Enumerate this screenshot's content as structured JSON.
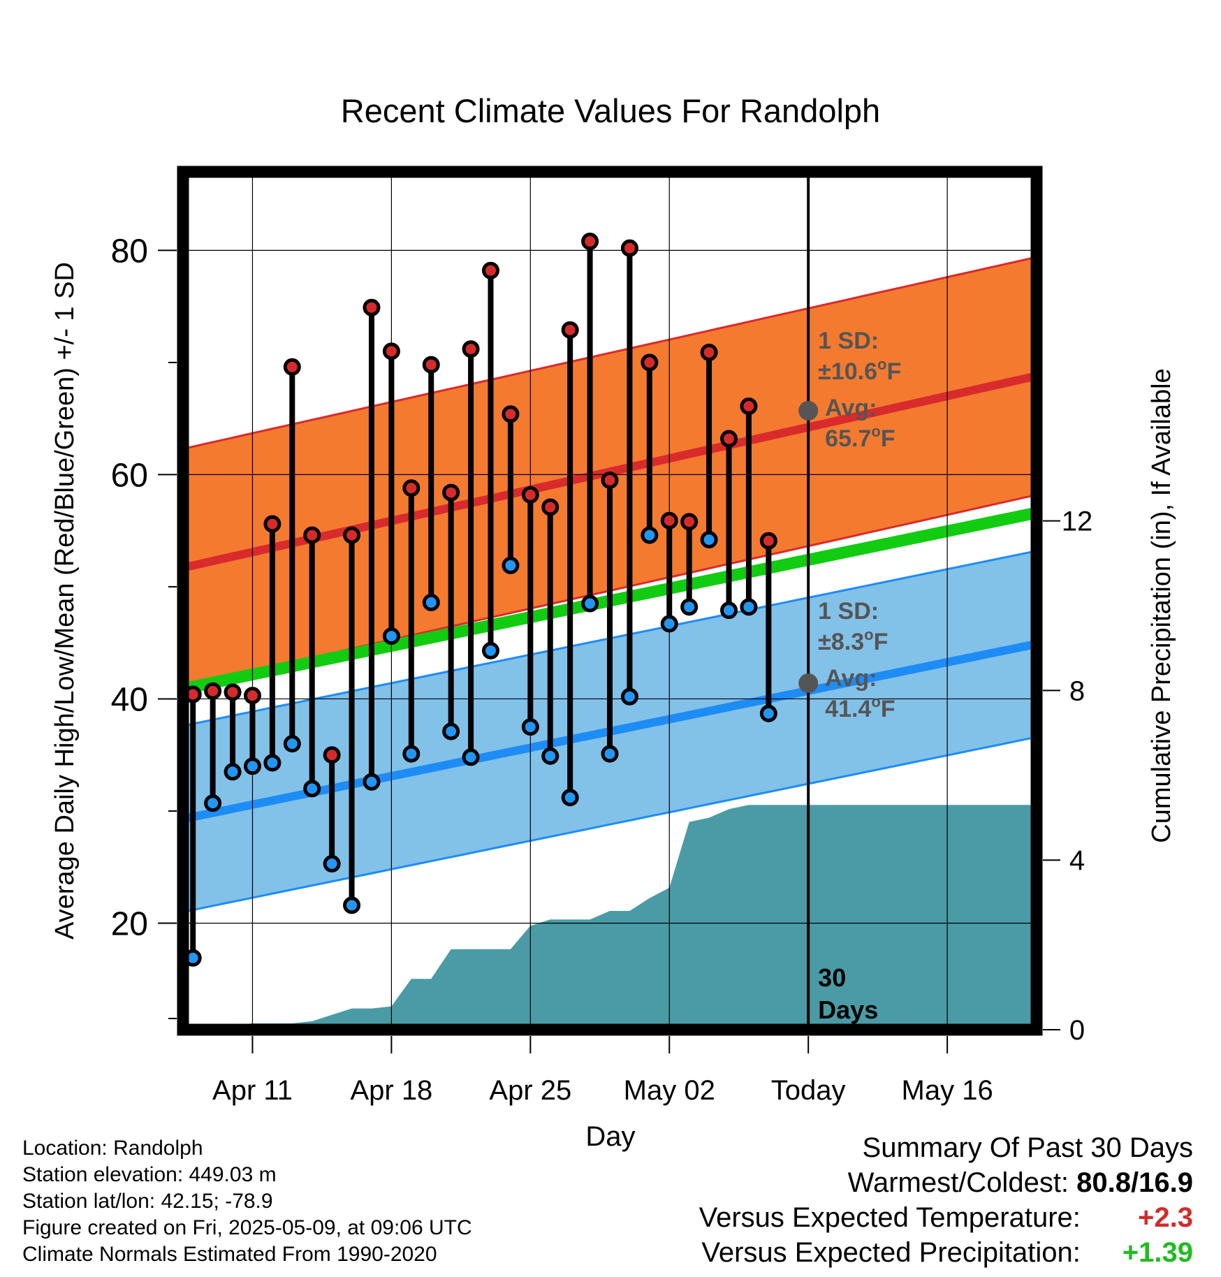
{
  "chart_data": {
    "type": "line",
    "title": "Recent Climate Values For Randolph",
    "xlabel": "Day",
    "ylabel": "Average Daily High/Low/Mean (Red/Blue/Green) +/- 1 SD",
    "y2label": "Cumulative Precipitation (in), If Available",
    "x_start": "Apr 08",
    "x_end": "May 21",
    "xlim": [
      -0.5,
      42.5
    ],
    "ylim": [
      10.5,
      87
    ],
    "y2lim": [
      0,
      20.23
    ],
    "x_ticks": [
      {
        "day": 3,
        "label": "Apr 11"
      },
      {
        "day": 10,
        "label": "Apr 18"
      },
      {
        "day": 17,
        "label": "Apr 25"
      },
      {
        "day": 24,
        "label": "May 02"
      },
      {
        "day": 31,
        "label": "Today"
      },
      {
        "day": 38,
        "label": "May 16"
      }
    ],
    "y_ticks": [
      20,
      40,
      60,
      80
    ],
    "y_minor_ticks": [
      30,
      50,
      70
    ],
    "y2_ticks": [
      0,
      4,
      8,
      12
    ],
    "today_day": 31,
    "today_label_top": "30",
    "today_label_bottom": "Days",
    "grid": true,
    "colors": {
      "high_band": "#f47a30",
      "high_line": "#d92b2b",
      "high_band_edge": "#d92b2b",
      "low_band": "#82c1e8",
      "low_line": "#1e8cf5",
      "low_band_edge": "#1e8cf5",
      "mean_line": "#11cc11",
      "precip": "#4a9ba5",
      "high_marker": "#d62b2b",
      "low_marker": "#2196f3",
      "avg_marker": "#555555",
      "annotation": "#555555"
    },
    "normals": {
      "high_mean": {
        "start": 51.7,
        "end": 68.8
      },
      "high_sd": 10.6,
      "low_mean": {
        "start": 29.3,
        "end": 44.9
      },
      "low_sd": 8.3,
      "mean": {
        "start": 40.9,
        "end": 56.6
      }
    },
    "annotations": {
      "high": {
        "sd_label": "1 SD:",
        "sd_value": "±10.6",
        "avg_label": "Avg:",
        "avg_value": "65.7",
        "unit": "F",
        "avg": 65.7
      },
      "low": {
        "sd_label": "1 SD:",
        "sd_value": "±8.3",
        "avg_label": "Avg:",
        "avg_value": "41.4",
        "unit": "F",
        "avg": 41.4
      }
    },
    "observed": {
      "days": [
        0,
        1,
        2,
        3,
        4,
        5,
        6,
        7,
        8,
        9,
        10,
        11,
        12,
        13,
        14,
        15,
        16,
        17,
        18,
        19,
        20,
        21,
        22,
        23,
        24,
        25,
        26,
        27,
        28,
        29,
        30
      ],
      "highs": [
        40.4,
        40.7,
        40.6,
        40.3,
        55.6,
        69.6,
        54.6,
        35.0,
        54.6,
        74.9,
        71.0,
        58.8,
        69.8,
        58.4,
        71.2,
        78.2,
        65.4,
        58.2,
        57.1,
        72.9,
        80.8,
        59.5,
        80.2,
        70.0,
        55.9,
        55.8,
        70.9,
        63.2,
        66.1,
        54.1,
        null
      ],
      "lows": [
        16.9,
        30.7,
        33.5,
        34.0,
        34.3,
        36.0,
        32.0,
        25.3,
        21.6,
        32.6,
        45.6,
        35.1,
        48.6,
        37.1,
        34.8,
        44.3,
        51.9,
        37.5,
        34.9,
        31.2,
        48.5,
        35.1,
        40.2,
        54.6,
        46.7,
        48.2,
        54.2,
        47.9,
        48.2,
        38.7,
        null
      ]
    },
    "precip_cumulative": {
      "days": [
        0,
        1,
        2,
        3,
        4,
        5,
        6,
        7,
        8,
        9,
        10,
        11,
        12,
        13,
        14,
        15,
        16,
        17,
        18,
        19,
        20,
        21,
        22,
        23,
        24,
        25,
        26,
        27,
        28,
        29,
        30,
        31,
        42
      ],
      "values": [
        0,
        0,
        0.1,
        0.15,
        0.15,
        0.15,
        0.2,
        0.35,
        0.5,
        0.5,
        0.55,
        1.2,
        1.2,
        1.9,
        1.9,
        1.9,
        1.9,
        2.45,
        2.6,
        2.6,
        2.6,
        2.8,
        2.8,
        3.1,
        3.35,
        4.9,
        5.0,
        5.2,
        5.3,
        5.3,
        5.3,
        5.3,
        5.3
      ]
    }
  },
  "footer": {
    "location": "Location: Randolph",
    "elevation": "Station elevation: 449.03 m",
    "latlon": "Station lat/lon: 42.15; -78.9",
    "created": "Figure created on Fri, 2025-05-09, at 09:06 UTC",
    "normals": "Climate Normals Estimated From 1990-2020"
  },
  "summary": {
    "title": "Summary Of Past 30 Days",
    "warm_cold_label": "Warmest/Coldest:",
    "warm_cold_value": "80.8/16.9",
    "temp_label": "Versus Expected Temperature:",
    "temp_value": "+2.3",
    "temp_color": "#d22b2b",
    "precip_label": "Versus Expected Precipitation:",
    "precip_value": "+1.39",
    "precip_color": "#22bb22"
  }
}
